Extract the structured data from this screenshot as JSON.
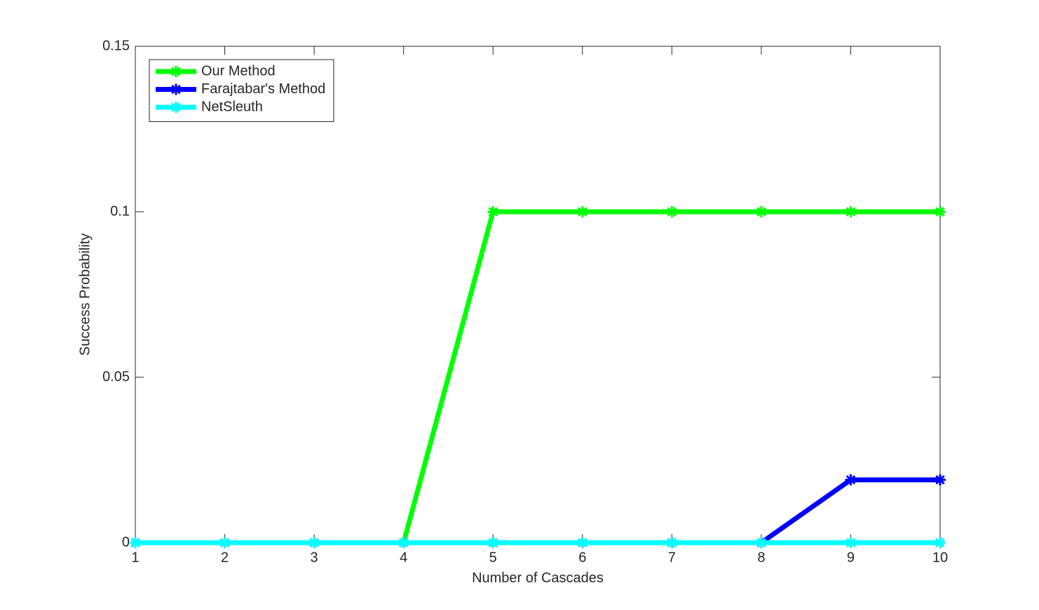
{
  "chart_data": {
    "type": "line",
    "xlabel": "Number of Cascades",
    "ylabel": "Success Probability",
    "x": [
      1,
      2,
      3,
      4,
      5,
      6,
      7,
      8,
      9,
      10
    ],
    "xlim": [
      1,
      10
    ],
    "xticks": [
      1,
      2,
      3,
      4,
      5,
      6,
      7,
      8,
      9,
      10
    ],
    "ylim": [
      0,
      0.15
    ],
    "yticks": [
      0,
      0.05,
      0.1,
      0.15
    ],
    "grid": false,
    "legend": "upper left",
    "series": [
      {
        "name": "Our Method",
        "color": "#00ff00",
        "values": [
          0,
          0,
          0,
          0,
          0.1,
          0.1,
          0.1,
          0.1,
          0.1,
          0.1
        ]
      },
      {
        "name": "Farajtabar's Method",
        "color": "#0000ff",
        "values": [
          0,
          0,
          0,
          0,
          0,
          0,
          0,
          0,
          0.019,
          0.019
        ]
      },
      {
        "name": "NetSleuth",
        "color": "#00ffff",
        "values": [
          0,
          0,
          0,
          0,
          0,
          0,
          0,
          0,
          0,
          0
        ]
      }
    ]
  }
}
